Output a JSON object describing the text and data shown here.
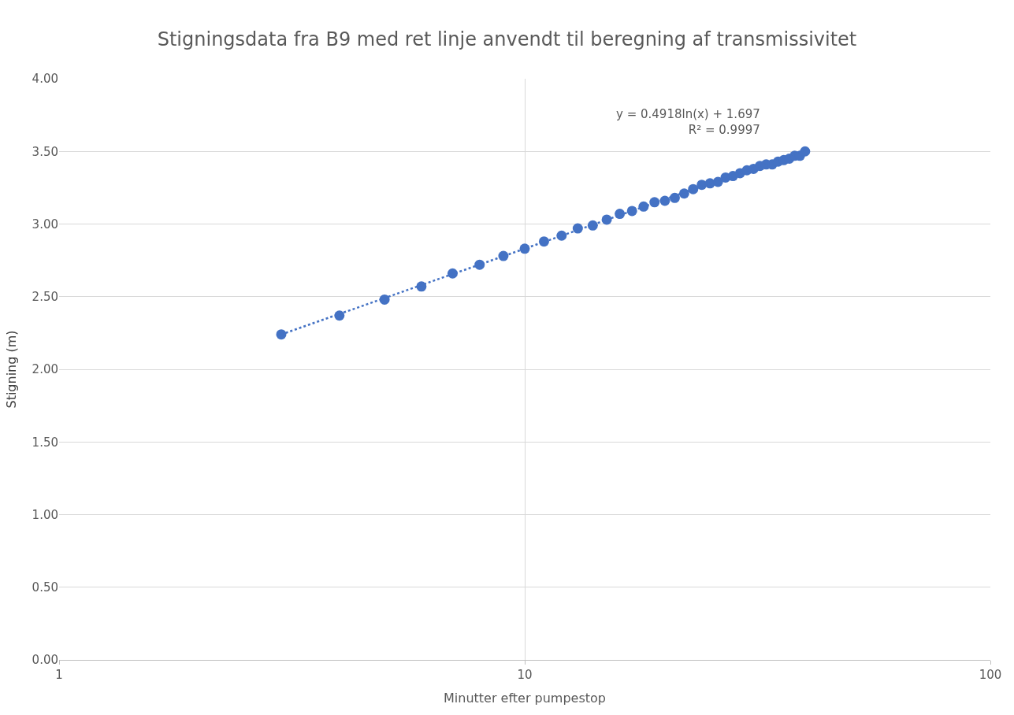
{
  "chart_data": {
    "type": "scatter",
    "title": "Stigningsdata fra B9 med ret linje anvendt til beregning af transmissivitet",
    "xlabel": "Minutter efter pumpestop",
    "ylabel": "Stigning (m)",
    "log": "x",
    "grid": true,
    "marker": "circle",
    "xlim": [
      1,
      100
    ],
    "xticks": [
      1,
      10,
      100
    ],
    "ylim": [
      0,
      4
    ],
    "yticks": [
      {
        "value": 0,
        "label": "0.00"
      },
      {
        "value": 0.5,
        "label": "0.50"
      },
      {
        "value": 1,
        "label": "1.00"
      },
      {
        "value": 1.5,
        "label": "1.50"
      },
      {
        "value": 2,
        "label": "2.00"
      },
      {
        "value": 2.5,
        "label": "2.50"
      },
      {
        "value": 3,
        "label": "3.00"
      },
      {
        "value": 3.5,
        "label": "3.50"
      },
      {
        "value": 4,
        "label": "4.00"
      }
    ],
    "annotations": [
      "y = 0.4918ln(x) + 1.697\nR² = 0.9997"
    ],
    "series": [
      {
        "color": "#4472c4",
        "x": [
          3,
          4,
          5,
          6,
          7,
          8,
          9,
          10,
          11,
          12,
          13,
          14,
          15,
          16,
          17,
          18,
          19,
          20,
          21,
          22,
          23,
          24,
          25,
          26,
          27,
          28,
          29,
          30,
          31,
          32,
          33,
          34,
          35,
          36,
          37,
          38,
          39,
          40
        ],
        "values": [
          2.24,
          2.37,
          2.48,
          2.57,
          2.66,
          2.72,
          2.78,
          2.83,
          2.88,
          2.92,
          2.97,
          2.99,
          3.03,
          3.07,
          3.09,
          3.12,
          3.15,
          3.16,
          3.18,
          3.21,
          3.24,
          3.27,
          3.28,
          3.29,
          3.32,
          3.33,
          3.35,
          3.37,
          3.38,
          3.4,
          3.41,
          3.41,
          3.43,
          3.44,
          3.45,
          3.47,
          3.47,
          3.5
        ]
      },
      {
        "type": "line",
        "color": "#4472c4",
        "line_style": "dotted",
        "marker": "none",
        "x": [
          3,
          40
        ],
        "values": [
          2.24,
          3.51
        ]
      }
    ]
  }
}
